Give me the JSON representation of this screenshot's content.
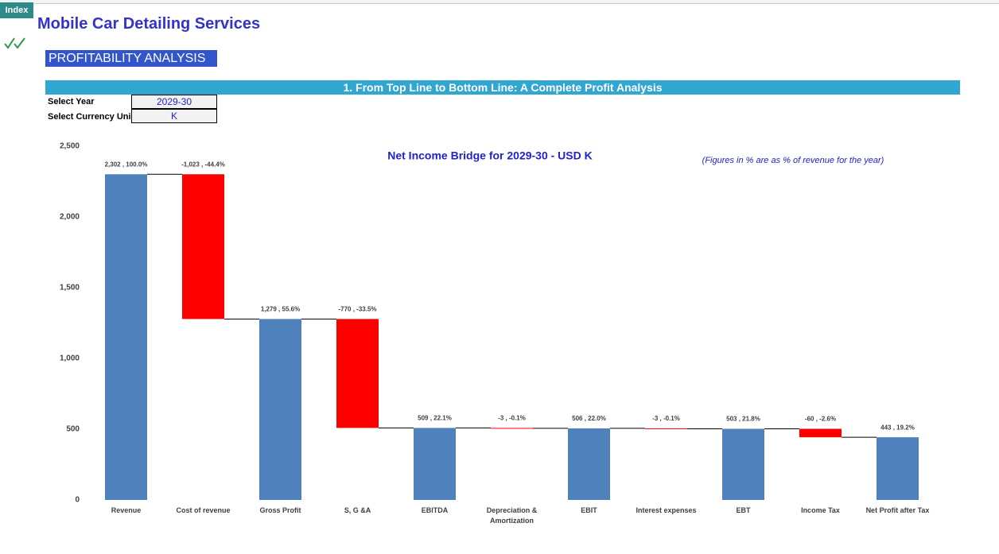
{
  "index_button": "Index",
  "header": {
    "title": "Mobile Car Detailing Services",
    "section": "PROFITABILITY ANALYSIS"
  },
  "banner": "1. From Top Line to Bottom Line: A Complete Profit Analysis",
  "inputs": [
    {
      "label": "Select Year",
      "value": "2029-30"
    },
    {
      "label": "Select Currency Uni",
      "value": "K"
    }
  ],
  "chart_data": {
    "type": "waterfall",
    "title": "Net Income Bridge for 2029-30 - USD K",
    "note": "(Figures in % are as % of revenue for the year)",
    "categories": [
      "Revenue",
      "Cost of revenue",
      "Gross Profit",
      "S, G &A",
      "EBITDA",
      "Depreciation & Amortization",
      "EBIT",
      "Interest expenses",
      "EBT",
      "Income Tax",
      "Net Profit after Tax"
    ],
    "values": [
      2302,
      -1023,
      1279,
      -770,
      509,
      -3,
      506,
      -3,
      503,
      -60,
      443
    ],
    "value_labels": [
      "2,302 , 100.0%",
      "-1,023 , -44.4%",
      "1,279 , 55.6%",
      "-770 , -33.5%",
      "509 , 22.1%",
      "-3 , -0.1%",
      "506 , 22.0%",
      "-3 , -0.1%",
      "503 , 21.8%",
      "-60 , -2.6%",
      "443 , 19.2%"
    ],
    "totals": [
      true,
      false,
      true,
      false,
      true,
      false,
      true,
      false,
      true,
      false,
      true
    ],
    "total_color": "#4f81bd",
    "negative_color": "#ff0000",
    "ylim": [
      0,
      2500
    ],
    "yticks": [
      0,
      500,
      {
        "value": 1000,
        "label": "1,000"
      },
      {
        "value": 1500,
        "label": "1,500"
      },
      {
        "value": 2000,
        "label": "2,000"
      },
      {
        "value": 2500,
        "label": "2,500"
      }
    ],
    "grid": false
  }
}
